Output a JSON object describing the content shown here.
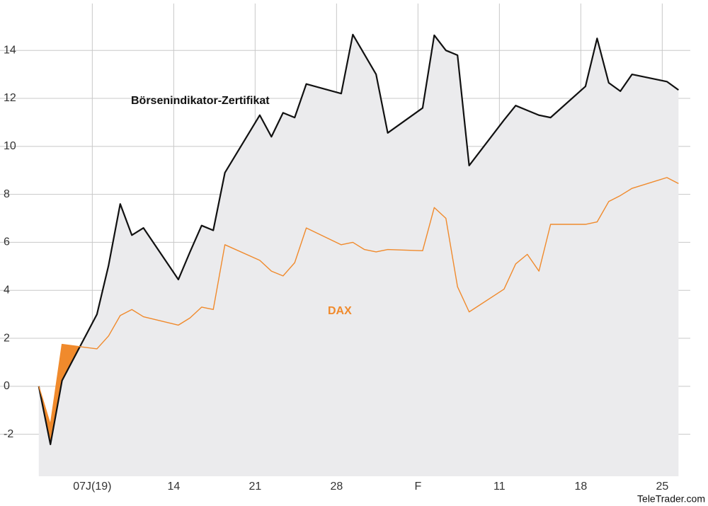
{
  "chart_data": {
    "type": "line",
    "x": [
      0,
      1,
      2,
      5,
      6,
      7,
      8,
      9,
      12,
      13,
      14,
      15,
      16,
      19,
      20,
      21,
      22,
      23,
      26,
      27,
      28,
      29,
      30,
      33,
      34,
      35,
      36,
      37,
      40,
      41,
      42,
      43,
      44,
      47,
      48,
      49,
      50,
      51,
      54,
      55
    ],
    "series": [
      {
        "name": "Börsenindikator-Zertifikat",
        "color": "#111111",
        "values": [
          0,
          -2.42,
          0.24,
          3.0,
          5.04,
          7.6,
          6.3,
          6.6,
          4.45,
          5.6,
          6.7,
          6.5,
          8.9,
          11.3,
          10.4,
          11.4,
          11.2,
          12.6,
          12.2,
          14.66,
          13.83,
          13.0,
          10.56,
          11.6,
          14.63,
          14.0,
          13.8,
          9.2,
          11.1,
          11.7,
          11.5,
          11.3,
          11.2,
          12.5,
          14.5,
          12.65,
          12.3,
          13.0,
          12.7,
          12.35
        ]
      },
      {
        "name": "DAX",
        "color": "#f08a2c",
        "values": [
          0,
          -1.6,
          1.75,
          1.56,
          2.1,
          2.95,
          3.2,
          2.9,
          2.55,
          2.85,
          3.3,
          3.2,
          5.9,
          5.25,
          4.8,
          4.6,
          5.15,
          6.6,
          5.9,
          6.0,
          5.7,
          5.6,
          5.7,
          5.65,
          7.45,
          7.0,
          4.15,
          3.1,
          4.05,
          5.1,
          5.5,
          4.8,
          6.75,
          6.75,
          6.85,
          7.7,
          7.95,
          8.25,
          8.7,
          8.45
        ]
      }
    ],
    "xlim": [
      -0.9,
      55.1
    ],
    "xticks": [
      {
        "value": 4.6,
        "label": "07J(19)"
      },
      {
        "value": 11.6,
        "label": "14"
      },
      {
        "value": 18.6,
        "label": "21"
      },
      {
        "value": 25.6,
        "label": "28"
      },
      {
        "value": 32.6,
        "label": "F"
      },
      {
        "value": 39.6,
        "label": "11"
      },
      {
        "value": 46.6,
        "label": "18"
      },
      {
        "value": 53.6,
        "label": "25"
      }
    ],
    "ylim": [
      -3.75,
      16.1
    ],
    "yticks": [
      -2,
      0,
      2,
      4,
      6,
      8,
      10,
      12,
      14
    ],
    "grid": true,
    "source": "TeleTrader.com"
  }
}
